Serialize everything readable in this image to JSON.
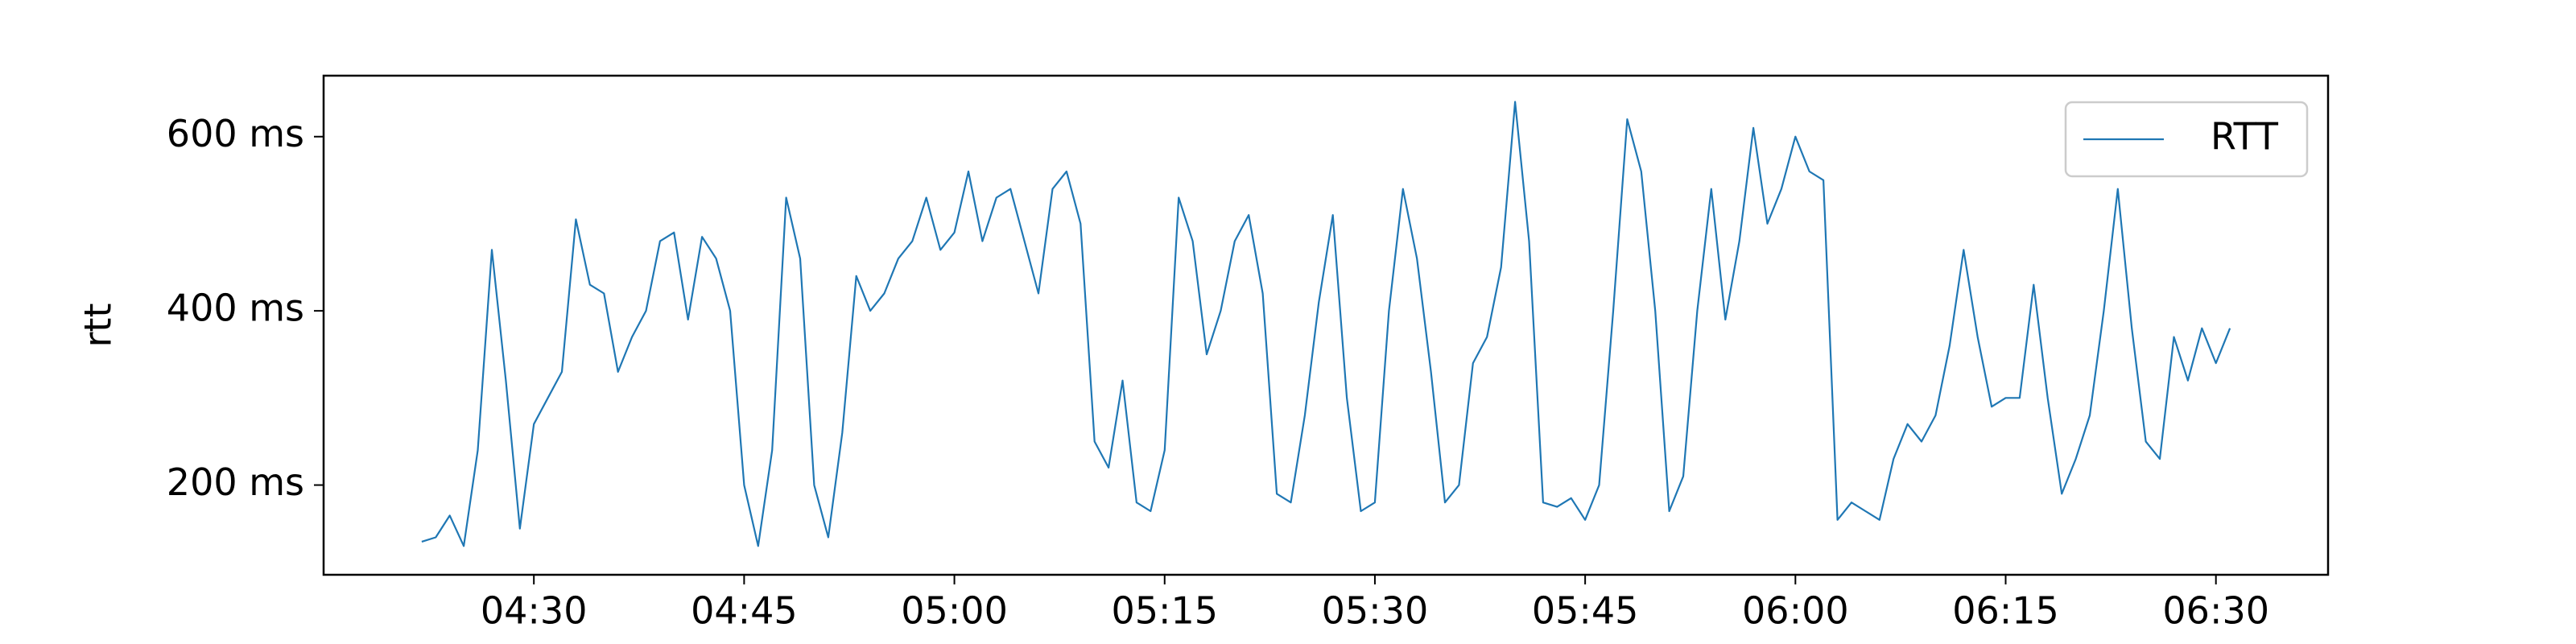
{
  "chart_data": {
    "type": "line",
    "ylabel": "rtt",
    "legend": "upper right",
    "grid": false,
    "x": [
      "04:22",
      "04:23",
      "04:24",
      "04:25",
      "04:26",
      "04:27",
      "04:28",
      "04:29",
      "04:30",
      "04:31",
      "04:32",
      "04:33",
      "04:34",
      "04:35",
      "04:36",
      "04:37",
      "04:38",
      "04:39",
      "04:40",
      "04:41",
      "04:42",
      "04:43",
      "04:44",
      "04:45",
      "04:46",
      "04:47",
      "04:48",
      "04:49",
      "04:50",
      "04:51",
      "04:52",
      "04:53",
      "04:54",
      "04:55",
      "04:56",
      "04:57",
      "04:58",
      "04:59",
      "05:00",
      "05:01",
      "05:02",
      "05:03",
      "05:04",
      "05:05",
      "05:06",
      "05:07",
      "05:08",
      "05:09",
      "05:10",
      "05:11",
      "05:12",
      "05:13",
      "05:14",
      "05:15",
      "05:16",
      "05:17",
      "05:18",
      "05:19",
      "05:20",
      "05:21",
      "05:22",
      "05:23",
      "05:24",
      "05:25",
      "05:26",
      "05:27",
      "05:28",
      "05:29",
      "05:30",
      "05:31",
      "05:32",
      "05:33",
      "05:34",
      "05:35",
      "05:36",
      "05:37",
      "05:38",
      "05:39",
      "05:40",
      "05:41",
      "05:42",
      "05:43",
      "05:44",
      "05:45",
      "05:46",
      "05:47",
      "05:48",
      "05:49",
      "05:50",
      "05:51",
      "05:52",
      "05:53",
      "05:54",
      "05:55",
      "05:56",
      "05:57",
      "05:58",
      "05:59",
      "06:00",
      "06:01",
      "06:02",
      "06:03",
      "06:04",
      "06:05",
      "06:06",
      "06:07",
      "06:08",
      "06:09",
      "06:10",
      "06:11",
      "06:12",
      "06:13",
      "06:14",
      "06:15",
      "06:16",
      "06:17",
      "06:18",
      "06:19",
      "06:20",
      "06:21",
      "06:22",
      "06:23",
      "06:24",
      "06:25",
      "06:26",
      "06:27",
      "06:28",
      "06:29",
      "06:30",
      "06:31"
    ],
    "series": [
      {
        "name": "RTT",
        "color": "#1f77b4",
        "values": [
          135,
          140,
          165,
          130,
          240,
          470,
          320,
          150,
          270,
          300,
          330,
          505,
          430,
          420,
          330,
          370,
          400,
          480,
          490,
          390,
          485,
          460,
          400,
          200,
          130,
          240,
          530,
          460,
          200,
          140,
          260,
          440,
          400,
          420,
          460,
          480,
          530,
          470,
          490,
          560,
          480,
          530,
          540,
          480,
          420,
          540,
          560,
          500,
          250,
          220,
          320,
          180,
          170,
          240,
          530,
          480,
          350,
          400,
          480,
          510,
          420,
          190,
          180,
          280,
          410,
          510,
          300,
          170,
          180,
          400,
          540,
          460,
          330,
          180,
          200,
          340,
          370,
          450,
          640,
          480,
          180,
          175,
          185,
          160,
          200,
          400,
          620,
          560,
          400,
          170,
          210,
          400,
          540,
          390,
          480,
          610,
          500,
          540,
          600,
          560,
          550,
          160,
          180,
          170,
          160,
          230,
          270,
          250,
          280,
          360,
          470,
          370,
          290,
          300,
          300,
          430,
          300,
          190,
          230,
          280,
          400,
          540,
          380,
          250,
          230,
          370,
          320,
          380,
          340,
          380
        ]
      }
    ],
    "xlim": [
      "04:15",
      "06:38"
    ],
    "xticks": [
      "04:30",
      "04:45",
      "05:00",
      "05:15",
      "05:30",
      "05:45",
      "06:00",
      "06:15",
      "06:30"
    ],
    "ylim": [
      97,
      670
    ],
    "yticks": [
      {
        "value": 200,
        "label": "200 ms"
      },
      {
        "value": 400,
        "label": "400 ms"
      },
      {
        "value": 600,
        "label": "600 ms"
      }
    ]
  }
}
